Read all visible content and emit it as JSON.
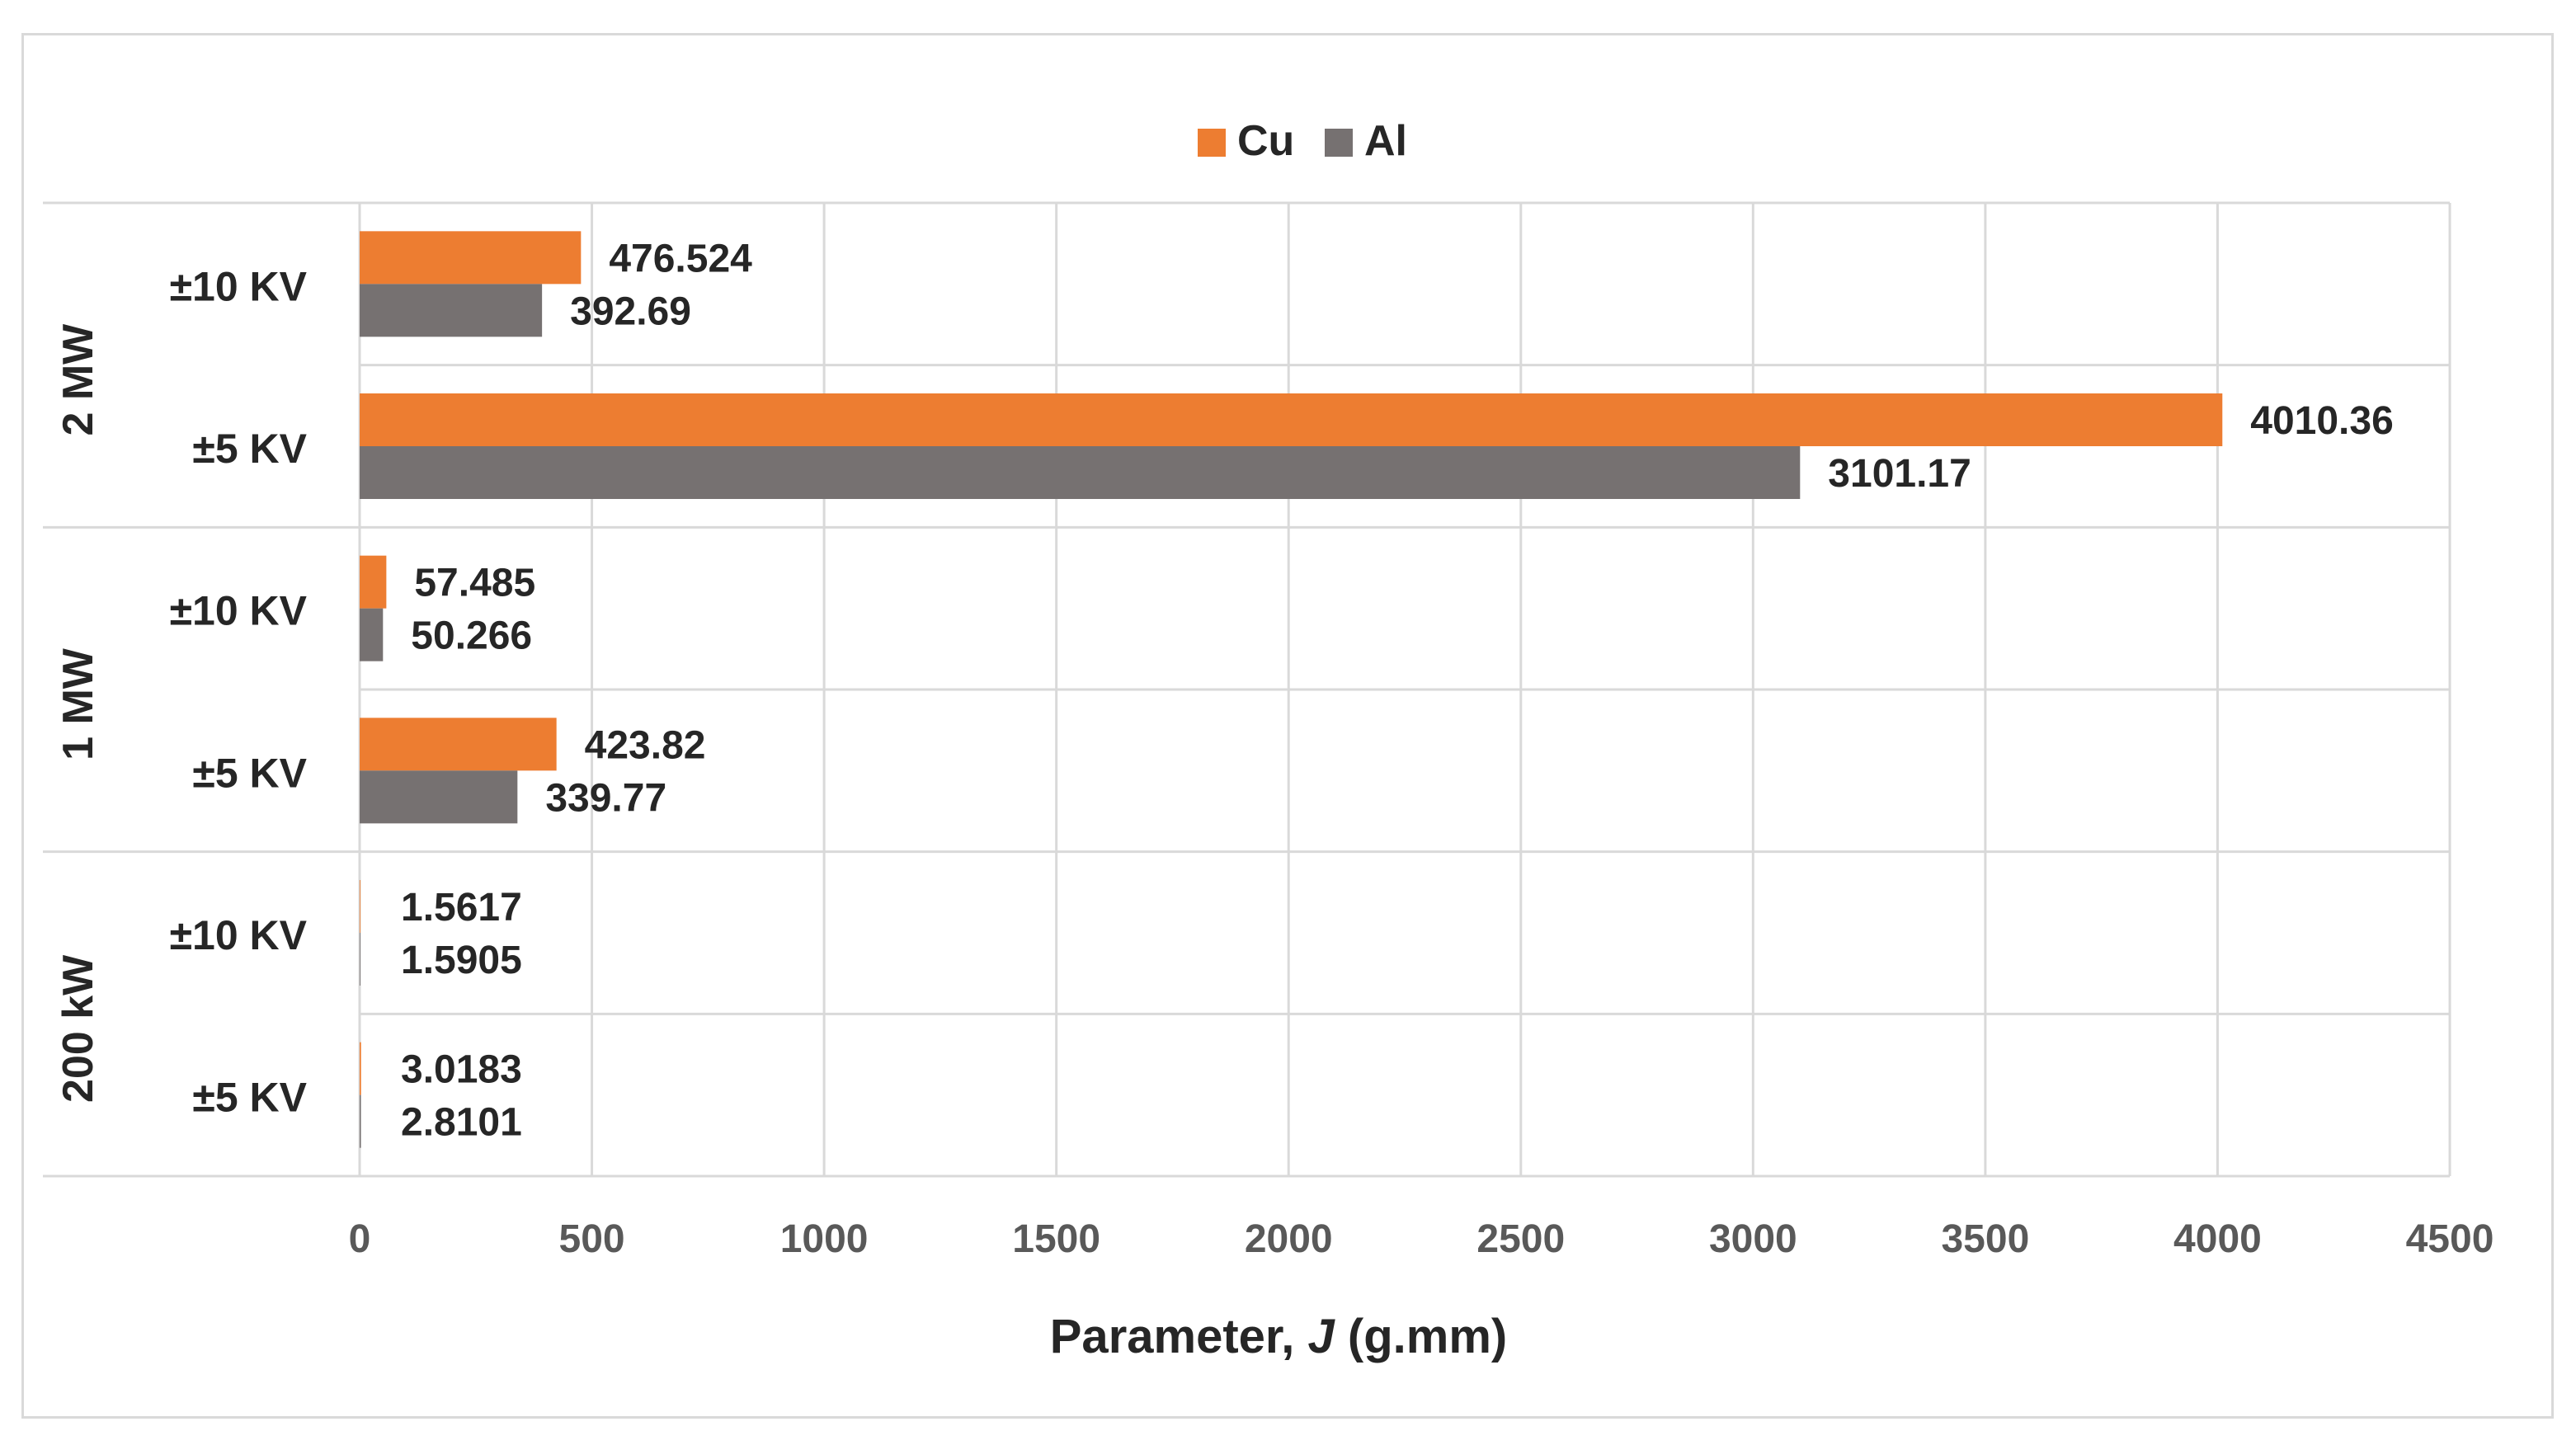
{
  "chart_data": {
    "type": "bar",
    "orientation": "horizontal",
    "groups": [
      {
        "label": "2 MW",
        "categories": [
          "±10 KV",
          "±5 KV"
        ]
      },
      {
        "label": "1 MW",
        "categories": [
          "±10 KV",
          "±5 KV"
        ]
      },
      {
        "label": "200 kW",
        "categories": [
          "±10 KV",
          "±5 KV"
        ]
      }
    ],
    "series": [
      {
        "name": "Cu",
        "color": "#ed7d31",
        "values": [
          476.524,
          4010.36,
          57.485,
          423.82,
          1.5617,
          3.0183
        ],
        "labels": [
          "476.524",
          "4010.36",
          "57.485",
          "423.82",
          "1.5617",
          "3.0183"
        ]
      },
      {
        "name": "Al",
        "color": "#767171",
        "values": [
          392.69,
          3101.17,
          50.266,
          339.77,
          1.5905,
          2.8101
        ],
        "labels": [
          "392.69",
          "3101.17",
          "50.266",
          "339.77",
          "1.5905",
          "2.8101"
        ]
      }
    ],
    "xlim": [
      0,
      4500
    ],
    "xticks": [
      "0",
      "500",
      "1000",
      "1500",
      "2000",
      "2500",
      "3000",
      "3500",
      "4000",
      "4500"
    ],
    "xlabel_prefix": "Parameter, ",
    "xlabel_italic": "J",
    "xlabel_suffix": " (g.mm)",
    "legend_position": "top",
    "grid": true
  }
}
